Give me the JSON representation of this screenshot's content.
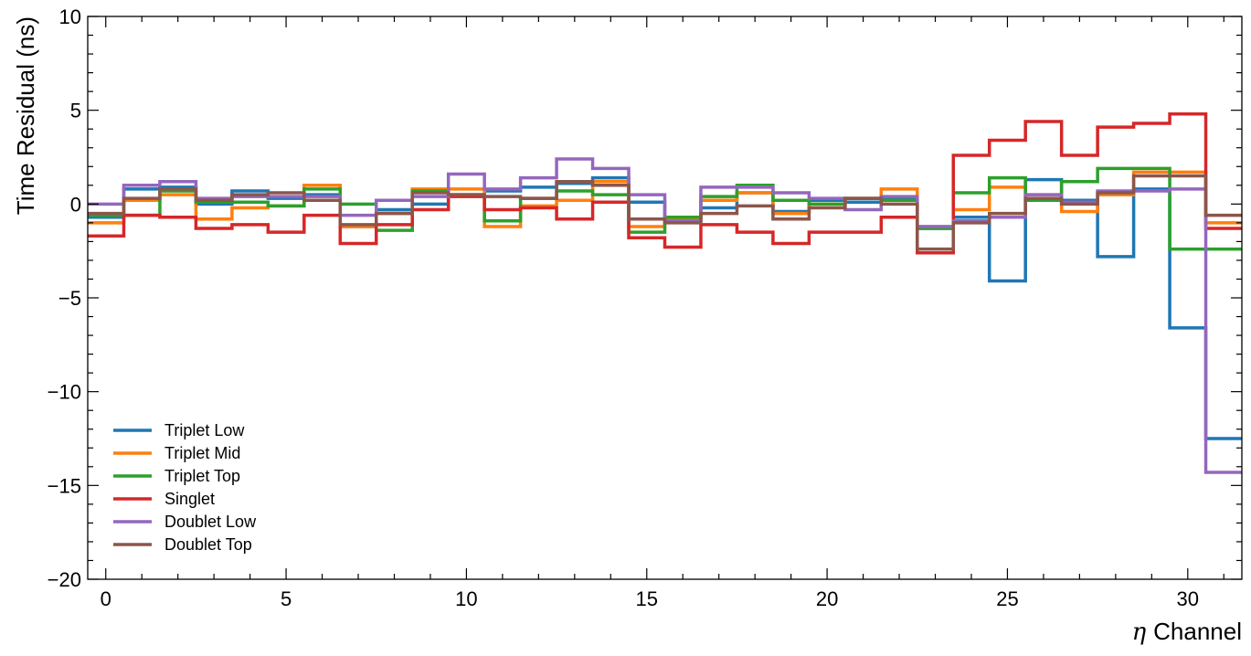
{
  "chart_data": {
    "type": "line",
    "step": true,
    "xlabel_symbol": "η",
    "xlabel_text": "Channel",
    "ylabel": "Time Residual (ns)",
    "xlim": [
      -0.5,
      31.5
    ],
    "ylim": [
      -20,
      10
    ],
    "xticks": [
      0,
      5,
      10,
      15,
      20,
      25,
      30
    ],
    "xtick_labels": [
      "0",
      "5",
      "10",
      "15",
      "20",
      "25",
      "30"
    ],
    "yticks": [
      -20,
      -15,
      -10,
      -5,
      0,
      5,
      10
    ],
    "ytick_labels": [
      "−20",
      "−15",
      "−10",
      "−5",
      "0",
      "5",
      "10"
    ],
    "grid": false,
    "legend_position": "bottom-left",
    "x": [
      0,
      1,
      2,
      3,
      4,
      5,
      6,
      7,
      8,
      9,
      10,
      11,
      12,
      13,
      14,
      15,
      16,
      17,
      18,
      19,
      20,
      21,
      22,
      23,
      24,
      25,
      26,
      27,
      28,
      29,
      30,
      31
    ],
    "series": [
      {
        "name": "Triplet Low",
        "color": "#1f77b4",
        "values": [
          -0.7,
          0.8,
          0.9,
          0.0,
          0.7,
          0.3,
          0.5,
          -1.2,
          -0.3,
          0.0,
          0.5,
          0.7,
          0.9,
          1.1,
          1.4,
          0.1,
          -0.8,
          -0.2,
          0.6,
          -0.4,
          0.2,
          0.1,
          0.3,
          -1.3,
          -0.7,
          -4.1,
          1.3,
          0.2,
          -2.8,
          0.8,
          -6.6,
          -12.5
        ]
      },
      {
        "name": "Triplet Mid",
        "color": "#ff7f0e",
        "values": [
          -1.0,
          0.2,
          0.5,
          -0.8,
          -0.2,
          -0.1,
          1.0,
          -1.2,
          -0.5,
          0.8,
          0.8,
          -1.2,
          -0.1,
          0.2,
          1.2,
          -1.2,
          -0.8,
          0.2,
          0.6,
          -0.5,
          0.0,
          0.3,
          0.8,
          -1.2,
          -0.3,
          0.9,
          0.5,
          -0.4,
          0.5,
          1.7,
          1.7,
          -1.0
        ]
      },
      {
        "name": "Triplet Top",
        "color": "#2ca02c",
        "values": [
          -0.6,
          -0.6,
          0.7,
          0.1,
          0.1,
          -0.1,
          0.8,
          0.0,
          -1.4,
          0.7,
          0.5,
          -0.9,
          0.3,
          0.7,
          0.5,
          -1.5,
          -0.7,
          0.4,
          1.0,
          0.2,
          0.0,
          0.3,
          0.2,
          -1.3,
          0.6,
          1.4,
          0.2,
          1.2,
          1.9,
          1.9,
          -2.4,
          -2.4
        ]
      },
      {
        "name": "Singlet",
        "color": "#d62728",
        "values": [
          -1.7,
          -0.6,
          -0.7,
          -1.3,
          -1.1,
          -1.5,
          -0.6,
          -2.1,
          -1.1,
          -0.3,
          0.4,
          -0.3,
          -0.2,
          -0.8,
          0.1,
          -1.8,
          -2.3,
          -1.1,
          -1.5,
          -2.1,
          -1.5,
          -1.5,
          -0.7,
          -2.6,
          2.6,
          3.4,
          4.4,
          2.6,
          4.1,
          4.3,
          4.8,
          -1.3
        ]
      },
      {
        "name": "Doublet Low",
        "color": "#9467bd",
        "values": [
          0.0,
          1.0,
          1.2,
          0.3,
          0.4,
          0.4,
          0.4,
          -0.6,
          0.2,
          0.4,
          1.6,
          0.8,
          1.4,
          2.4,
          1.9,
          0.5,
          -0.9,
          0.9,
          0.9,
          0.6,
          0.3,
          -0.3,
          0.4,
          -1.2,
          -0.9,
          -0.7,
          0.5,
          0.1,
          0.7,
          0.7,
          0.8,
          -14.3
        ]
      },
      {
        "name": "Doublet Top",
        "color": "#8c564b",
        "values": [
          -0.5,
          0.3,
          0.8,
          0.2,
          0.5,
          0.6,
          0.2,
          -1.1,
          -0.5,
          0.6,
          0.5,
          0.4,
          0.3,
          1.2,
          1.0,
          -0.8,
          -1.0,
          -0.5,
          -0.1,
          -0.8,
          -0.2,
          0.3,
          0.0,
          -2.4,
          -1.0,
          -0.5,
          0.3,
          0.0,
          0.6,
          1.5,
          1.5,
          -0.6
        ]
      }
    ]
  }
}
